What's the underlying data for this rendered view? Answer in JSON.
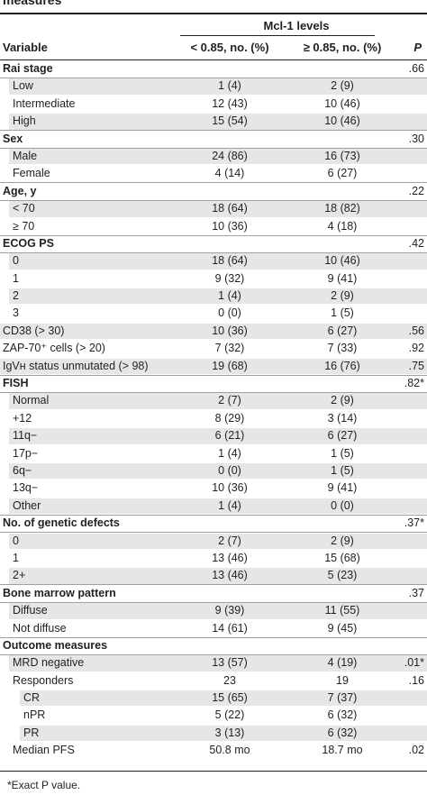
{
  "title": "measures",
  "group_header": "Mcl-1 levels",
  "headers": {
    "variable": "Variable",
    "col1": "< 0.85, no. (%)",
    "col2": "≥ 0.85, no. (%)",
    "p": "P"
  },
  "rows": [
    {
      "kind": "section",
      "label": "Rai stage",
      "v1": "",
      "v2": "",
      "p": ".66"
    },
    {
      "kind": "sub",
      "label": "Low",
      "v1": "1 (4)",
      "v2": "2 (9)",
      "p": ""
    },
    {
      "kind": "sub",
      "label": "Intermediate",
      "v1": "12 (43)",
      "v2": "10 (46)",
      "p": ""
    },
    {
      "kind": "sub",
      "label": "High",
      "v1": "15 (54)",
      "v2": "10 (46)",
      "p": ""
    },
    {
      "kind": "section",
      "label": "Sex",
      "v1": "",
      "v2": "",
      "p": ".30"
    },
    {
      "kind": "sub",
      "label": "Male",
      "v1": "24 (86)",
      "v2": "16 (73)",
      "p": ""
    },
    {
      "kind": "sub",
      "label": "Female",
      "v1": "4 (14)",
      "v2": "6 (27)",
      "p": ""
    },
    {
      "kind": "section",
      "label": "Age, y",
      "v1": "",
      "v2": "",
      "p": ".22"
    },
    {
      "kind": "sub",
      "label": "< 70",
      "v1": "18 (64)",
      "v2": "18 (82)",
      "p": ""
    },
    {
      "kind": "sub",
      "label": "≥ 70",
      "v1": "10 (36)",
      "v2": "4 (18)",
      "p": ""
    },
    {
      "kind": "section",
      "label": "ECOG PS",
      "v1": "",
      "v2": "",
      "p": ".42"
    },
    {
      "kind": "sub",
      "label": "0",
      "v1": "18 (64)",
      "v2": "10 (46)",
      "p": ""
    },
    {
      "kind": "sub",
      "label": "1",
      "v1": "9 (32)",
      "v2": "9 (41)",
      "p": ""
    },
    {
      "kind": "sub",
      "label": "2",
      "v1": "1 (4)",
      "v2": "2 (9)",
      "p": ""
    },
    {
      "kind": "sub",
      "label": "3",
      "v1": "0 (0)",
      "v2": "1 (5)",
      "p": ""
    },
    {
      "kind": "plain",
      "label": "CD38 (> 30)",
      "v1": "10 (36)",
      "v2": "6 (27)",
      "p": ".56"
    },
    {
      "kind": "plain",
      "label": "ZAP-70⁺ cells (> 20)",
      "v1": "7 (32)",
      "v2": "7 (33)",
      "p": ".92"
    },
    {
      "kind": "plain",
      "label": "IgVʜ status unmutated (> 98)",
      "v1": "19 (68)",
      "v2": "16 (76)",
      "p": ".75"
    },
    {
      "kind": "section",
      "label": "FISH",
      "v1": "",
      "v2": "",
      "p": ".82*"
    },
    {
      "kind": "sub",
      "label": "Normal",
      "v1": "2 (7)",
      "v2": "2 (9)",
      "p": ""
    },
    {
      "kind": "sub",
      "label": "+12",
      "v1": "8 (29)",
      "v2": "3 (14)",
      "p": ""
    },
    {
      "kind": "sub",
      "label": "11q−",
      "v1": "6 (21)",
      "v2": "6 (27)",
      "p": ""
    },
    {
      "kind": "sub",
      "label": "17p−",
      "v1": "1 (4)",
      "v2": "1 (5)",
      "p": ""
    },
    {
      "kind": "sub",
      "label": "6q−",
      "v1": "0 (0)",
      "v2": "1 (5)",
      "p": ""
    },
    {
      "kind": "sub",
      "label": "13q−",
      "v1": "10 (36)",
      "v2": "9 (41)",
      "p": ""
    },
    {
      "kind": "sub",
      "label": "Other",
      "v1": "1 (4)",
      "v2": "0 (0)",
      "p": ""
    },
    {
      "kind": "section",
      "label": "No. of genetic defects",
      "v1": "",
      "v2": "",
      "p": ".37*"
    },
    {
      "kind": "sub",
      "label": "0",
      "v1": "2 (7)",
      "v2": "2 (9)",
      "p": ""
    },
    {
      "kind": "sub",
      "label": "1",
      "v1": "13 (46)",
      "v2": "15 (68)",
      "p": ""
    },
    {
      "kind": "sub",
      "label": "2+",
      "v1": "13 (46)",
      "v2": "5 (23)",
      "p": ""
    },
    {
      "kind": "section",
      "label": "Bone marrow pattern",
      "v1": "",
      "v2": "",
      "p": ".37"
    },
    {
      "kind": "sub",
      "label": "Diffuse",
      "v1": "9 (39)",
      "v2": "11 (55)",
      "p": ""
    },
    {
      "kind": "sub",
      "label": "Not diffuse",
      "v1": "14 (61)",
      "v2": "9 (45)",
      "p": ""
    },
    {
      "kind": "section",
      "label": "Outcome measures",
      "v1": "",
      "v2": "",
      "p": ""
    },
    {
      "kind": "sub",
      "label": "MRD negative",
      "v1": "13 (57)",
      "v2": "4 (19)",
      "p": ".01*"
    },
    {
      "kind": "sub",
      "label": "Responders",
      "v1": "23",
      "v2": "19",
      "p": ".16"
    },
    {
      "kind": "subsub",
      "label": "CR",
      "v1": "15 (65)",
      "v2": "7 (37)",
      "p": ""
    },
    {
      "kind": "subsub",
      "label": "nPR",
      "v1": "5 (22)",
      "v2": "6 (32)",
      "p": ""
    },
    {
      "kind": "subsub",
      "label": "PR",
      "v1": "3 (13)",
      "v2": "6 (32)",
      "p": ""
    },
    {
      "kind": "sub",
      "label": "Median PFS",
      "v1": "50.8 mo",
      "v2": "18.7 mo",
      "p": ".02"
    }
  ],
  "footnote": "*Exact P value."
}
